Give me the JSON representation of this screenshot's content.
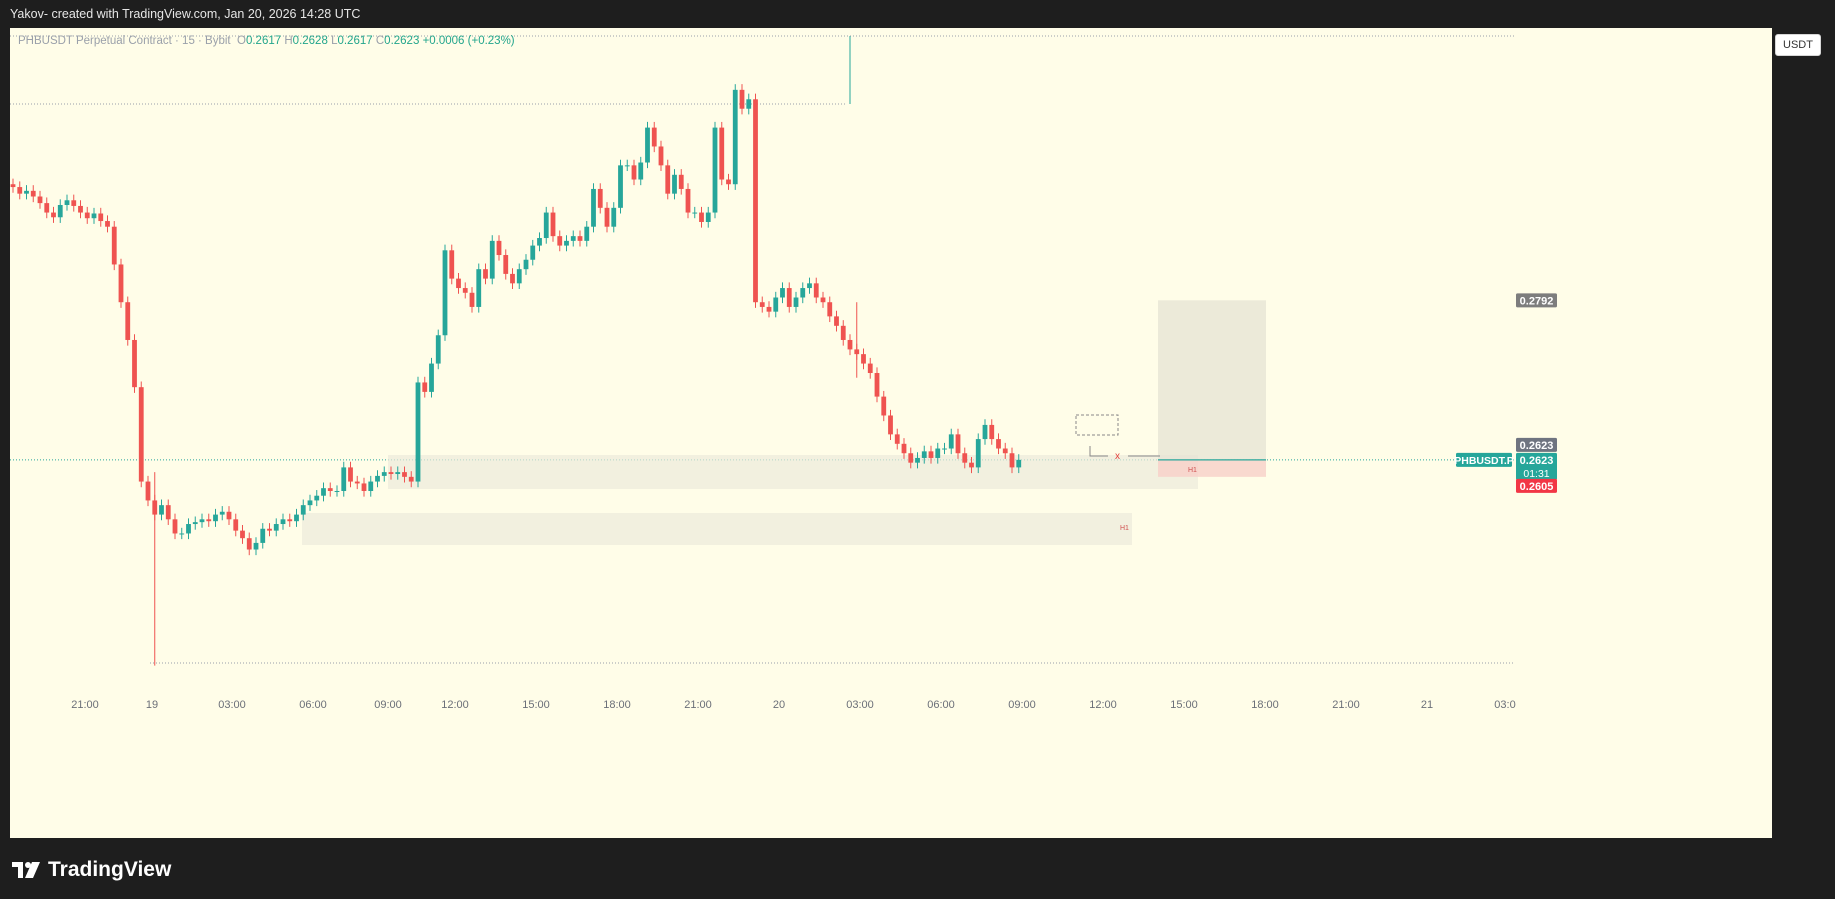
{
  "header": {
    "text": "Yakov- created with TradingView.com, Jan 20, 2026 14:28 UTC"
  },
  "legend": {
    "symbol": "PHBUSDT Perpetual Contract · 15 · Bybit",
    "o_label": "O",
    "o": "0.2617",
    "h_label": "H",
    "h": "0.2628",
    "l_label": "L",
    "l": "0.2617",
    "c_label": "C",
    "c": "0.2623",
    "change": "+0.0006 (+0.23%)"
  },
  "currency_button": "USDT",
  "footer": {
    "brand": "TradingView"
  },
  "colors": {
    "up": "#26a69a",
    "down": "#ef5350",
    "background": "#fffde8",
    "frame": "#1e1e1e"
  },
  "price_labels": {
    "target": "0.2792",
    "last_small": "0.2623",
    "symbol_tag": "PHBUSDT.P",
    "last_price": "0.2623",
    "countdown": "01:31",
    "stop": "0.2605"
  },
  "zone_labels": [
    "H1",
    "H1"
  ],
  "marker": "x",
  "chart_data": {
    "type": "candlestick",
    "interval": "15",
    "ylim": [
      0.2394,
      0.3072
    ],
    "y_ticks": [
      "0.3050",
      "0.3000",
      "0.2950",
      "0.2900",
      "0.2860",
      "0.2820",
      "0.2780",
      "0.2740",
      "0.2700",
      "0.2660",
      "0.2590",
      "0.2560",
      "0.2530",
      "0.2500",
      "0.2470",
      "0.2445",
      "0.2420",
      "0.2394"
    ],
    "x_ticks": [
      "21:00",
      "19",
      "03:00",
      "06:00",
      "09:00",
      "12:00",
      "15:00",
      "18:00",
      "21:00",
      "20",
      "03:00",
      "06:00",
      "09:00",
      "12:00",
      "15:00",
      "18:00",
      "21:00",
      "21",
      "03:0"
    ],
    "last_price": 0.2623,
    "series": [
      {
        "name": "PHBUSDT.P",
        "values": [
          0.2912,
          0.2905,
          0.2908,
          0.2902,
          0.2895,
          0.2885,
          0.288,
          0.2893,
          0.2898,
          0.2892,
          0.2885,
          0.2879,
          0.2884,
          0.2876,
          0.287,
          0.283,
          0.279,
          0.275,
          0.27,
          0.26,
          0.258,
          0.2565,
          0.2575,
          0.256,
          0.2545,
          0.2545,
          0.2555,
          0.2557,
          0.256,
          0.2558,
          0.2565,
          0.2568,
          0.256,
          0.2548,
          0.254,
          0.2528,
          0.2535,
          0.255,
          0.2548,
          0.2555,
          0.256,
          0.2558,
          0.2565,
          0.2575,
          0.258,
          0.2585,
          0.2593,
          0.259,
          0.259,
          0.2615,
          0.26,
          0.2598,
          0.259,
          0.26,
          0.2606,
          0.261,
          0.2608,
          0.261,
          0.2605,
          0.26,
          0.2705,
          0.2695,
          0.2725,
          0.2755,
          0.2845,
          0.2815,
          0.2805,
          0.28,
          0.2785,
          0.2825,
          0.2815,
          0.2855,
          0.284,
          0.282,
          0.281,
          0.2825,
          0.2835,
          0.285,
          0.2858,
          0.2885,
          0.286,
          0.285,
          0.2855,
          0.286,
          0.2855,
          0.287,
          0.291,
          0.289,
          0.287,
          0.289,
          0.2935,
          0.2935,
          0.292,
          0.2938,
          0.2975,
          0.2955,
          0.2935,
          0.2905,
          0.2925,
          0.291,
          0.2885,
          0.2885,
          0.2875,
          0.2885,
          0.2975,
          0.292,
          0.2915,
          0.3015,
          0.2995,
          0.3005,
          0.279,
          0.2785,
          0.278,
          0.2795,
          0.2805,
          0.2785,
          0.2795,
          0.2805,
          0.281,
          0.2795,
          0.279,
          0.2775,
          0.2765,
          0.275,
          0.274,
          0.2735,
          0.2725,
          0.2715,
          0.269,
          0.267,
          0.265,
          0.264,
          0.263,
          0.262,
          0.2625,
          0.2632,
          0.2625,
          0.2635,
          0.2635,
          0.265,
          0.263,
          0.262,
          0.2615,
          0.2645,
          0.266,
          0.2645,
          0.2635,
          0.263,
          0.2615,
          0.2623
        ]
      }
    ]
  }
}
